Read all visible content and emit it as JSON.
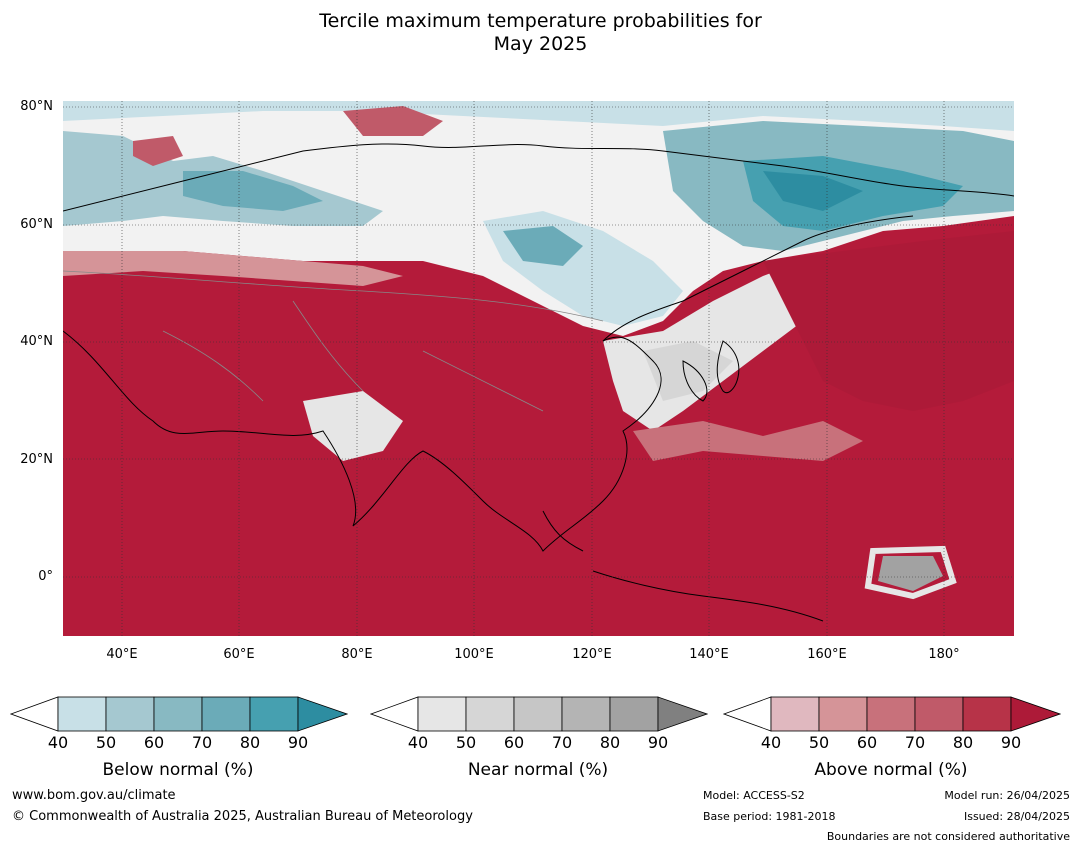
{
  "title_line1": "Tercile maximum temperature probabilities for",
  "title_line2": "May 2025",
  "lat_labels": [
    "80°N",
    "60°N",
    "40°N",
    "20°N",
    "0°"
  ],
  "lon_labels": [
    "40°E",
    "60°E",
    "80°E",
    "100°E",
    "120°E",
    "140°E",
    "160°E",
    "180°"
  ],
  "legends": [
    {
      "title": "Below normal (%)",
      "ticks": [
        "40",
        "50",
        "60",
        "70",
        "80",
        "90"
      ],
      "colors": [
        "#ffffff",
        "#c8e0e7",
        "#a5c8d0",
        "#88b9c2",
        "#6babb8",
        "#46a0b0",
        "#2d8da1"
      ]
    },
    {
      "title": "Near normal (%)",
      "ticks": [
        "40",
        "50",
        "60",
        "70",
        "80",
        "90"
      ],
      "colors": [
        "#ffffff",
        "#e6e6e6",
        "#d6d6d6",
        "#c6c6c6",
        "#b4b4b4",
        "#a2a2a2",
        "#808080"
      ]
    },
    {
      "title": "Above normal (%)",
      "ticks": [
        "40",
        "50",
        "60",
        "70",
        "80",
        "90"
      ],
      "colors": [
        "#ffffff",
        "#e0b8bf",
        "#d59498",
        "#c8717b",
        "#c05a69",
        "#b73348",
        "#ad1a38"
      ]
    }
  ],
  "footer": {
    "website": "www.bom.gov.au/climate",
    "copyright": "© Commonwealth of Australia 2025, Australian Bureau of Meteorology",
    "model": "Model: ACCESS-S2",
    "base_period": "Base period: 1981-2018",
    "model_run": "Model run: 26/04/2025",
    "issued": "Issued: 28/04/2025",
    "boundaries_note": "Boundaries are not considered authoritative"
  }
}
